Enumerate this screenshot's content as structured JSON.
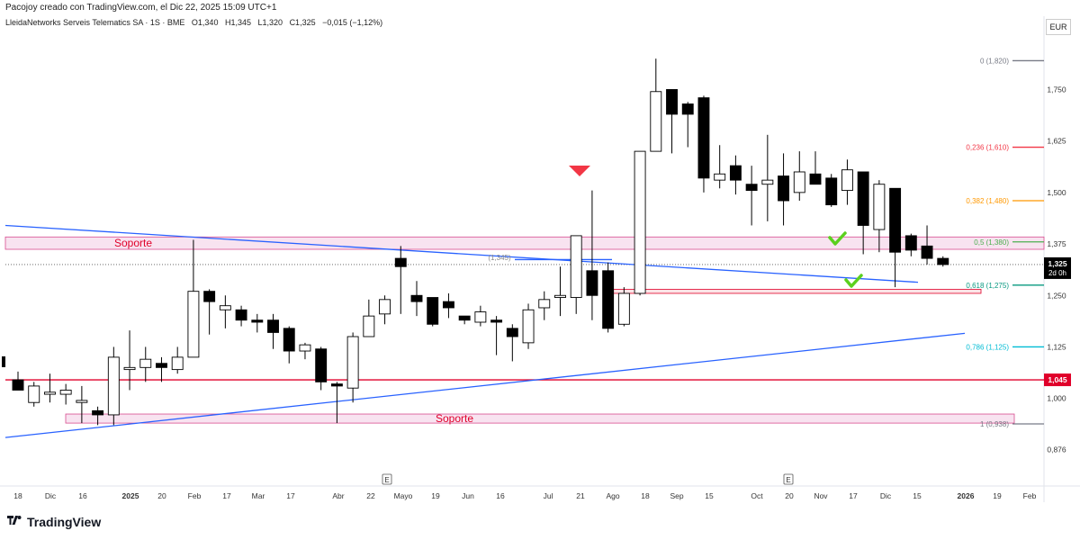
{
  "header": {
    "text": "Pacojoy creado con TradingView.com, el Dic 22, 2025 15:09 UTC+1"
  },
  "symbol": {
    "name": "LleidaNetworks Serveis Telematics SA · 1S · BME",
    "open": "O1,340",
    "high": "H1,345",
    "low": "L1,320",
    "close": "C1,325",
    "change": "−0,015 (−1,12%)"
  },
  "currency": "EUR",
  "footer": {
    "brand": "TradingView"
  },
  "colors": {
    "up": "#ffffff",
    "down": "#000000",
    "trend": "#2962ff",
    "support_line": "#e0002a",
    "zone_fill": "#f3d0e6",
    "zone_border": "#d84d8f"
  },
  "chart_data": {
    "type": "candlestick",
    "title": "LleidaNetworks Serveis Telematics SA · 1S · BME",
    "y_range": [
      0.82,
      1.88
    ],
    "y_ticks": [
      {
        "v": 1.75,
        "label": "1,750"
      },
      {
        "v": 1.625,
        "label": "1,625"
      },
      {
        "v": 1.5,
        "label": "1,500"
      },
      {
        "v": 1.375,
        "label": "1,375"
      },
      {
        "v": 1.25,
        "label": "1,250"
      },
      {
        "v": 1.125,
        "label": "1,125"
      },
      {
        "v": 1.0,
        "label": "1,000"
      },
      {
        "v": 0.876,
        "label": "0,876"
      }
    ],
    "x_ticks": [
      "18",
      "Dic",
      "16",
      "2025",
      "20",
      "Feb",
      "17",
      "Mar",
      "17",
      "Abr",
      "22",
      "Mayo",
      "19",
      "Jun",
      "16",
      "Jul",
      "21",
      "Ago",
      "18",
      "Sep",
      "15",
      "Oct",
      "20",
      "Nov",
      "17",
      "Dic",
      "15",
      "2026",
      "19",
      "Feb"
    ],
    "candles": [
      {
        "o": 1.045,
        "h": 1.065,
        "l": 1.025,
        "c": 1.02
      },
      {
        "o": 0.99,
        "h": 1.04,
        "l": 0.98,
        "c": 1.03
      },
      {
        "o": 1.01,
        "h": 1.06,
        "l": 0.99,
        "c": 1.015
      },
      {
        "o": 1.01,
        "h": 1.035,
        "l": 0.985,
        "c": 1.02
      },
      {
        "o": 0.99,
        "h": 1.03,
        "l": 0.94,
        "c": 0.995
      },
      {
        "o": 0.97,
        "h": 0.98,
        "l": 0.935,
        "c": 0.96
      },
      {
        "o": 0.96,
        "h": 1.125,
        "l": 0.935,
        "c": 1.1
      },
      {
        "o": 1.07,
        "h": 1.165,
        "l": 1.02,
        "c": 1.075
      },
      {
        "o": 1.075,
        "h": 1.125,
        "l": 1.04,
        "c": 1.095
      },
      {
        "o": 1.085,
        "h": 1.1,
        "l": 1.04,
        "c": 1.075
      },
      {
        "o": 1.07,
        "h": 1.125,
        "l": 1.06,
        "c": 1.1
      },
      {
        "o": 1.1,
        "h": 1.385,
        "l": 1.1,
        "c": 1.26
      },
      {
        "o": 1.26,
        "h": 1.265,
        "l": 1.155,
        "c": 1.235
      },
      {
        "o": 1.215,
        "h": 1.25,
        "l": 1.17,
        "c": 1.225
      },
      {
        "o": 1.215,
        "h": 1.225,
        "l": 1.175,
        "c": 1.19
      },
      {
        "o": 1.19,
        "h": 1.205,
        "l": 1.16,
        "c": 1.185
      },
      {
        "o": 1.19,
        "h": 1.205,
        "l": 1.12,
        "c": 1.16
      },
      {
        "o": 1.17,
        "h": 1.175,
        "l": 1.085,
        "c": 1.115
      },
      {
        "o": 1.115,
        "h": 1.135,
        "l": 1.095,
        "c": 1.13
      },
      {
        "o": 1.12,
        "h": 1.125,
        "l": 1.02,
        "c": 1.04
      },
      {
        "o": 1.035,
        "h": 1.04,
        "l": 0.94,
        "c": 1.03
      },
      {
        "o": 1.025,
        "h": 1.16,
        "l": 0.99,
        "c": 1.15
      },
      {
        "o": 1.15,
        "h": 1.24,
        "l": 1.15,
        "c": 1.2
      },
      {
        "o": 1.205,
        "h": 1.25,
        "l": 1.18,
        "c": 1.24
      },
      {
        "o": 1.34,
        "h": 1.37,
        "l": 1.205,
        "c": 1.32
      },
      {
        "o": 1.25,
        "h": 1.285,
        "l": 1.2,
        "c": 1.235
      },
      {
        "o": 1.245,
        "h": 1.245,
        "l": 1.175,
        "c": 1.18
      },
      {
        "o": 1.235,
        "h": 1.255,
        "l": 1.195,
        "c": 1.22
      },
      {
        "o": 1.2,
        "h": 1.2,
        "l": 1.18,
        "c": 1.19
      },
      {
        "o": 1.185,
        "h": 1.225,
        "l": 1.175,
        "c": 1.21
      },
      {
        "o": 1.19,
        "h": 1.2,
        "l": 1.105,
        "c": 1.185
      },
      {
        "o": 1.17,
        "h": 1.18,
        "l": 1.09,
        "c": 1.15
      },
      {
        "o": 1.135,
        "h": 1.23,
        "l": 1.12,
        "c": 1.215
      },
      {
        "o": 1.22,
        "h": 1.26,
        "l": 1.19,
        "c": 1.24
      },
      {
        "o": 1.245,
        "h": 1.32,
        "l": 1.2,
        "c": 1.25
      },
      {
        "o": 1.245,
        "h": 1.39,
        "l": 1.205,
        "c": 1.395
      },
      {
        "o": 1.31,
        "h": 1.505,
        "l": 1.19,
        "c": 1.25
      },
      {
        "o": 1.31,
        "h": 1.33,
        "l": 1.16,
        "c": 1.17
      },
      {
        "o": 1.18,
        "h": 1.27,
        "l": 1.175,
        "c": 1.255
      },
      {
        "o": 1.255,
        "h": 1.6,
        "l": 1.25,
        "c": 1.6
      },
      {
        "o": 1.6,
        "h": 1.825,
        "l": 1.6,
        "c": 1.745
      },
      {
        "o": 1.75,
        "h": 1.75,
        "l": 1.595,
        "c": 1.69
      },
      {
        "o": 1.715,
        "h": 1.72,
        "l": 1.61,
        "c": 1.69
      },
      {
        "o": 1.73,
        "h": 1.735,
        "l": 1.5,
        "c": 1.535
      },
      {
        "o": 1.53,
        "h": 1.615,
        "l": 1.51,
        "c": 1.545
      },
      {
        "o": 1.565,
        "h": 1.59,
        "l": 1.495,
        "c": 1.53
      },
      {
        "o": 1.52,
        "h": 1.565,
        "l": 1.42,
        "c": 1.505
      },
      {
        "o": 1.52,
        "h": 1.64,
        "l": 1.43,
        "c": 1.53
      },
      {
        "o": 1.54,
        "h": 1.595,
        "l": 1.42,
        "c": 1.48
      },
      {
        "o": 1.5,
        "h": 1.6,
        "l": 1.48,
        "c": 1.55
      },
      {
        "o": 1.545,
        "h": 1.6,
        "l": 1.525,
        "c": 1.52
      },
      {
        "o": 1.535,
        "h": 1.545,
        "l": 1.465,
        "c": 1.47
      },
      {
        "o": 1.505,
        "h": 1.58,
        "l": 1.47,
        "c": 1.555
      },
      {
        "o": 1.55,
        "h": 1.55,
        "l": 1.35,
        "c": 1.42
      },
      {
        "o": 1.41,
        "h": 1.53,
        "l": 1.355,
        "c": 1.52
      },
      {
        "o": 1.51,
        "h": 1.51,
        "l": 1.27,
        "c": 1.355
      },
      {
        "o": 1.395,
        "h": 1.4,
        "l": 1.345,
        "c": 1.36
      },
      {
        "o": 1.37,
        "h": 1.42,
        "l": 1.325,
        "c": 1.34
      },
      {
        "o": 1.34,
        "h": 1.345,
        "l": 1.32,
        "c": 1.325
      }
    ],
    "fibonacci": [
      {
        "level": "0",
        "price": 1.82,
        "label": "0 (1,820)",
        "color": "#787b86"
      },
      {
        "level": "0.236",
        "price": 1.61,
        "label": "0,236 (1,610)",
        "color": "#f23645"
      },
      {
        "level": "0.382",
        "price": 1.48,
        "label": "0,382 (1,480)",
        "color": "#ff9800"
      },
      {
        "level": "0.5",
        "price": 1.38,
        "label": "0,5 (1,380)",
        "color": "#4caf50"
      },
      {
        "level": "0.618",
        "price": 1.275,
        "label": "0,618 (1,275)",
        "color": "#089981"
      },
      {
        "level": "0.786",
        "price": 1.125,
        "label": "0,786 (1,125)",
        "color": "#00bcd4"
      },
      {
        "level": "1",
        "price": 0.938,
        "label": "1 (0,938)",
        "color": "#787b86"
      }
    ],
    "support_zones": [
      {
        "name": "Soporte",
        "top": 1.392,
        "bottom": 1.362
      },
      {
        "name": "Soporte",
        "top": 0.962,
        "bottom": 0.94
      }
    ],
    "small_zone": {
      "top": 1.265,
      "bottom": 1.255
    },
    "support_line": {
      "price": 1.045,
      "label": "1,045"
    },
    "last_price": {
      "price": 1.325,
      "label": "1,325",
      "countdown": "2d 0h"
    },
    "annotation": {
      "text": "(1,345)",
      "price": 1.345
    },
    "markers": {
      "event": "E"
    }
  }
}
